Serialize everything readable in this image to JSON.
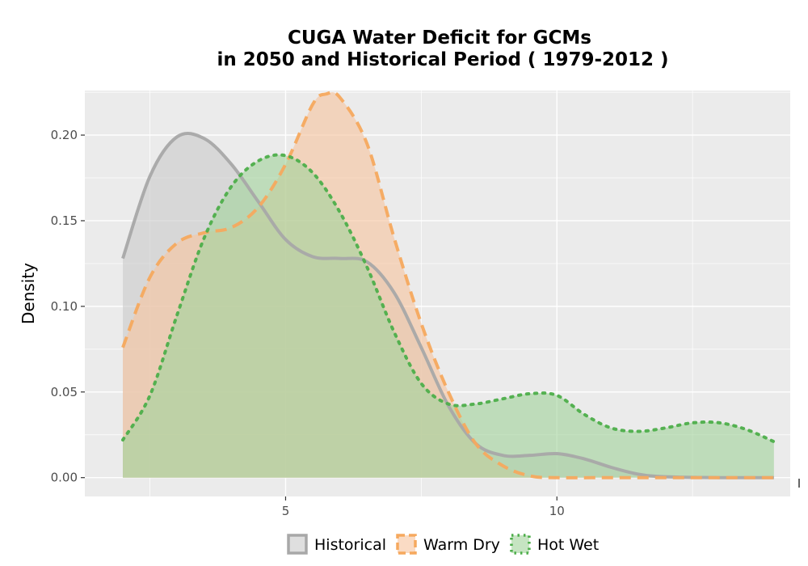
{
  "chart_data": {
    "type": "area",
    "title_line1": "CUGA  Water Deficit for GCMs",
    "title_line2": "in 2050 and Historical Period ( 1979-2012 )",
    "xlabel": "",
    "ylabel": "Density",
    "xlim": [
      1.3,
      14.3
    ],
    "ylim": [
      -0.011,
      0.226
    ],
    "x_ticks": [
      5,
      10
    ],
    "x_tick_labels": [
      "5",
      "10"
    ],
    "y_ticks": [
      0,
      0.05,
      0.1,
      0.15,
      0.2
    ],
    "y_tick_labels": [
      "0.00",
      "0.05",
      "0.10",
      "0.15",
      "0.20"
    ],
    "grid": true,
    "legend_position": "bottom",
    "series": [
      {
        "name": "Historical",
        "fill": "#cccccc",
        "stroke": "#a8a8a8",
        "dash": "solid",
        "points": [
          [
            2.0,
            0.128
          ],
          [
            2.5,
            0.176
          ],
          [
            3.0,
            0.199
          ],
          [
            3.5,
            0.198
          ],
          [
            4.0,
            0.183
          ],
          [
            4.5,
            0.161
          ],
          [
            5.0,
            0.139
          ],
          [
            5.5,
            0.129
          ],
          [
            6.0,
            0.128
          ],
          [
            6.5,
            0.126
          ],
          [
            7.0,
            0.108
          ],
          [
            7.5,
            0.076
          ],
          [
            8.0,
            0.042
          ],
          [
            8.5,
            0.02
          ],
          [
            9.0,
            0.013
          ],
          [
            9.5,
            0.013
          ],
          [
            10.0,
            0.014
          ],
          [
            10.5,
            0.011
          ],
          [
            11.0,
            0.006
          ],
          [
            11.5,
            0.002
          ],
          [
            12.0,
            0.0005
          ],
          [
            13.0,
            0.0
          ],
          [
            14.0,
            0.0
          ]
        ]
      },
      {
        "name": "Warm Dry",
        "fill": "#f7c59f",
        "stroke": "#f6a95e",
        "dash": "dashed",
        "points": [
          [
            2.0,
            0.076
          ],
          [
            2.5,
            0.117
          ],
          [
            3.0,
            0.137
          ],
          [
            3.5,
            0.143
          ],
          [
            4.0,
            0.146
          ],
          [
            4.5,
            0.158
          ],
          [
            5.0,
            0.183
          ],
          [
            5.5,
            0.218
          ],
          [
            5.75,
            0.224
          ],
          [
            6.0,
            0.222
          ],
          [
            6.5,
            0.195
          ],
          [
            7.0,
            0.14
          ],
          [
            7.5,
            0.09
          ],
          [
            8.0,
            0.05
          ],
          [
            8.5,
            0.02
          ],
          [
            9.0,
            0.007
          ],
          [
            9.5,
            0.001
          ],
          [
            10.0,
            0.0
          ],
          [
            11.0,
            0.0
          ],
          [
            12.0,
            0.0
          ],
          [
            13.0,
            0.0
          ],
          [
            14.0,
            0.0
          ]
        ]
      },
      {
        "name": "Hot Wet",
        "fill": "#a3d39c",
        "stroke": "#4dae4a",
        "dash": "dotted",
        "points": [
          [
            2.0,
            0.022
          ],
          [
            2.5,
            0.048
          ],
          [
            3.0,
            0.095
          ],
          [
            3.5,
            0.14
          ],
          [
            4.0,
            0.17
          ],
          [
            4.5,
            0.185
          ],
          [
            5.0,
            0.188
          ],
          [
            5.5,
            0.178
          ],
          [
            6.0,
            0.155
          ],
          [
            6.5,
            0.123
          ],
          [
            7.0,
            0.085
          ],
          [
            7.5,
            0.055
          ],
          [
            8.0,
            0.043
          ],
          [
            8.5,
            0.043
          ],
          [
            9.0,
            0.046
          ],
          [
            9.5,
            0.049
          ],
          [
            10.0,
            0.048
          ],
          [
            10.5,
            0.037
          ],
          [
            11.0,
            0.029
          ],
          [
            11.5,
            0.027
          ],
          [
            12.0,
            0.029
          ],
          [
            12.5,
            0.032
          ],
          [
            13.0,
            0.032
          ],
          [
            13.5,
            0.028
          ],
          [
            14.0,
            0.021
          ]
        ]
      }
    ]
  }
}
